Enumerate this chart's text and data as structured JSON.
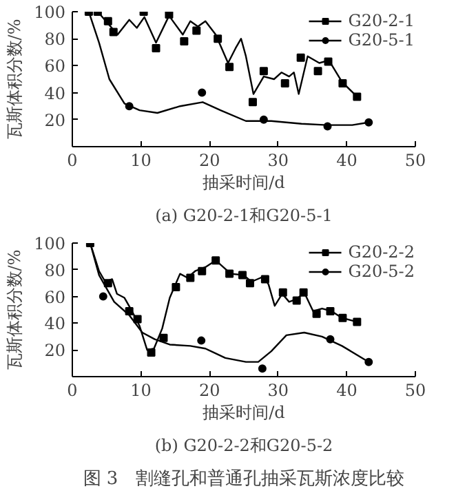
{
  "chart_data": [
    {
      "type": "line",
      "title": "(a) G20-2-1和G20-5-1",
      "xlabel": "抽采时间/d",
      "ylabel": "瓦斯体积分数/%",
      "xlim": [
        0,
        50
      ],
      "ylim": [
        0,
        100
      ],
      "xticks": [
        0,
        10,
        20,
        30,
        40,
        50
      ],
      "yticks": [
        {
          "value": 0,
          "label": null
        },
        20,
        40,
        60,
        80,
        100
      ],
      "grid": false,
      "legend": "top right",
      "series": [
        {
          "name": "G20-2-1",
          "color": "#000000",
          "marker": "none",
          "x": [
            3.7,
            6.6,
            8.3,
            9.4,
            10.5,
            12.2,
            14.1,
            16.1,
            17.2,
            18.3,
            19.4,
            20.9,
            22.7,
            23.8,
            24.6,
            25.3,
            26.4,
            27.9,
            29.4,
            30.5,
            31.6,
            32.3,
            33.0,
            34.3,
            36.0,
            37.4,
            39.3,
            41.5
          ],
          "values": [
            100,
            83,
            94,
            88,
            96,
            77,
            97,
            83,
            93,
            89,
            93,
            83,
            62,
            73,
            80,
            67,
            39,
            52,
            50,
            55,
            52,
            55,
            39,
            67,
            62,
            64,
            48,
            37
          ]
        },
        {
          "type": "scatter",
          "color": "#000000",
          "marker": "square",
          "x": [
            2.4,
            3.7,
            5.2,
            6.0,
            10.4,
            12.2,
            14.1,
            16.3,
            18.1,
            21.2,
            22.9,
            26.3,
            27.9,
            31.0,
            33.3,
            35.8,
            37.3,
            39.4,
            41.5
          ],
          "values": [
            100,
            100,
            93,
            85,
            100,
            73,
            98,
            78,
            86,
            80,
            59,
            33,
            56,
            47,
            66,
            56,
            63,
            47,
            37
          ]
        },
        {
          "name": "G20-5-1",
          "color": "#000000",
          "marker": "none",
          "x": [
            2.4,
            3.9,
            5.4,
            7.6,
            9.8,
            12.4,
            15.7,
            19.0,
            21.6,
            25.3,
            29.0,
            33.4,
            37.1,
            40.8,
            43.2
          ],
          "values": [
            100,
            77,
            50,
            32,
            27,
            25,
            30,
            33,
            27,
            19,
            19,
            17,
            16,
            16,
            18
          ]
        },
        {
          "type": "scatter",
          "color": "#000000",
          "marker": "circle",
          "x": [
            8.3,
            18.9,
            27.9,
            37.2,
            43.2
          ],
          "values": [
            30,
            40,
            20,
            15,
            18
          ]
        }
      ]
    },
    {
      "type": "line",
      "title": "(b) G20-2-2和G20-5-2",
      "xlabel": "抽采时间/d",
      "ylabel": "瓦斯体积分数/%",
      "xlim": [
        0,
        50
      ],
      "ylim": [
        0,
        100
      ],
      "xticks": [
        0,
        10,
        20,
        30,
        40,
        50
      ],
      "yticks": [
        {
          "value": 0,
          "label": null
        },
        20,
        40,
        60,
        80,
        100
      ],
      "grid": false,
      "legend": "top right",
      "annotations": [
        "图 3　割缝孔和普通孔抽采瓦斯浓度比较"
      ],
      "series": [
        {
          "name": "G20-2-2",
          "color": "#000000",
          "marker": "none",
          "x": [
            2.6,
            3.9,
            4.8,
            5.8,
            6.5,
            7.6,
            8.7,
            9.8,
            10.9,
            11.9,
            13.1,
            14.2,
            15.7,
            16.8,
            17.9,
            19.4,
            20.9,
            22.0,
            23.1,
            25.0,
            26.1,
            27.9,
            28.6,
            29.5,
            30.6,
            31.6,
            32.7,
            33.8,
            35.1,
            36.4,
            37.8,
            39.3,
            41.5
          ],
          "values": [
            100,
            79,
            71,
            73,
            62,
            59,
            49,
            38,
            20,
            21,
            36,
            59,
            77,
            74,
            79,
            82,
            87,
            82,
            77,
            76,
            71,
            75,
            69,
            53,
            62,
            56,
            58,
            63,
            49,
            51,
            49,
            44,
            41
          ]
        },
        {
          "type": "scatter",
          "color": "#000000",
          "marker": "square",
          "x": [
            2.6,
            5.2,
            8.3,
            9.5,
            11.5,
            13.3,
            15.1,
            17.2,
            18.9,
            20.9,
            22.9,
            24.8,
            25.9,
            28.1,
            30.7,
            32.7,
            33.7,
            35.6,
            37.6,
            39.4,
            41.5
          ],
          "values": [
            100,
            70,
            49,
            43,
            18,
            29,
            67,
            74,
            79,
            87,
            77,
            76,
            70,
            73,
            63,
            57,
            63,
            47,
            49,
            44,
            41
          ]
        },
        {
          "name": "G20-5-2",
          "color": "#000000",
          "marker": "none",
          "x": [
            2.6,
            3.9,
            6.1,
            8.3,
            10.2,
            12.0,
            14.2,
            17.2,
            19.4,
            22.3,
            25.3,
            27.1,
            29.0,
            31.2,
            33.8,
            36.4,
            39.3,
            43.2
          ],
          "values": [
            100,
            76,
            56,
            46,
            33,
            28,
            24,
            23,
            21,
            14,
            11,
            11,
            19,
            31,
            33,
            30,
            23,
            11
          ]
        },
        {
          "type": "scatter",
          "color": "#000000",
          "marker": "circle",
          "x": [
            4.5,
            18.8,
            27.7,
            37.6,
            43.2
          ],
          "values": [
            60,
            27,
            6,
            28,
            11
          ]
        }
      ]
    }
  ]
}
